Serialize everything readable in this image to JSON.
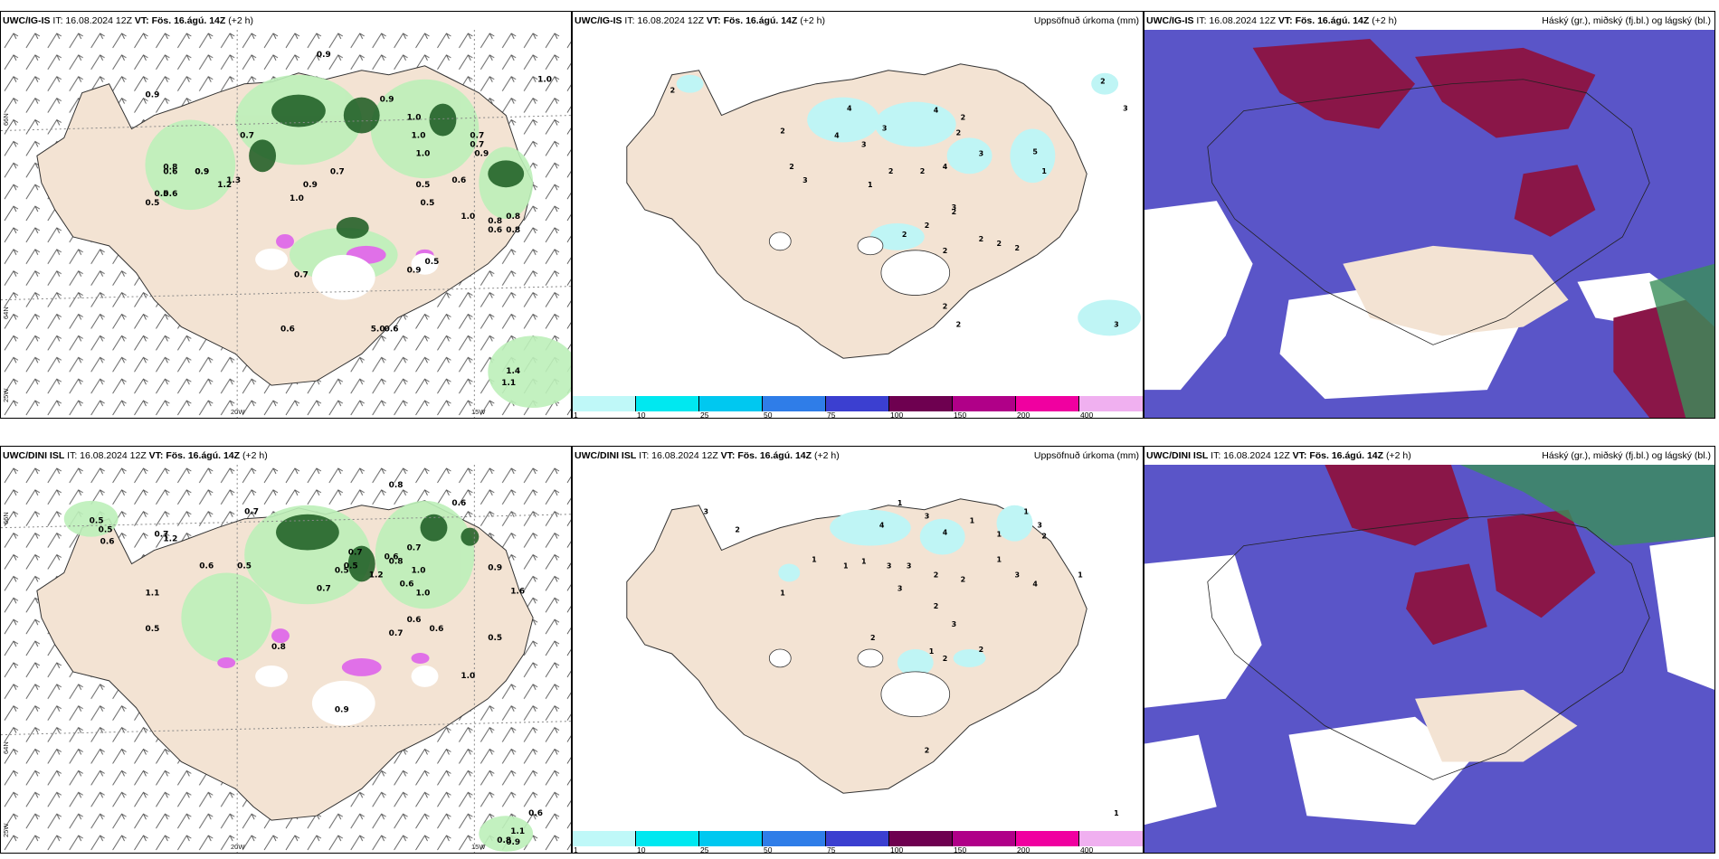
{
  "rows": [
    {
      "model": "UWC/IG-IS",
      "it": "IT: 16.08.2024 12Z",
      "vt_label": "VT:",
      "vt_value": "Fös. 16.ágú. 14Z",
      "lead": "(+2 h)",
      "labels_a": [
        "0.9",
        "1.0",
        "0.9",
        "0.9",
        "1.0",
        "0.7",
        "1.0",
        "1.3",
        "0.5",
        "0.7",
        "0.8",
        "1.0",
        "0.9",
        "0.6",
        "0.9",
        "1.2",
        "0.5",
        "1.0",
        "0.9",
        "0.7",
        "0.5",
        "0.6",
        "0.8",
        "0.5",
        "0.6",
        "1.0",
        "0.5",
        "0.9",
        "0.8",
        "0.8",
        "0.9",
        "0.7",
        "0.7",
        "0.6",
        "0.6",
        "5.0",
        "0.6",
        "1.1",
        "1.4"
      ],
      "labels_b": [
        "2",
        "2",
        "4",
        "3",
        "4",
        "2",
        "4",
        "3",
        "2",
        "4",
        "2",
        "3",
        "1",
        "2",
        "2",
        "3",
        "1",
        "5",
        "2",
        "2",
        "2",
        "2",
        "2",
        "2",
        "3",
        "2",
        "2",
        "2",
        "3",
        "2",
        "3"
      ]
    },
    {
      "model": "UWC/DINI ISL",
      "it": "IT: 16.08.2024 12Z",
      "vt_label": "VT:",
      "vt_value": "Fös. 16.ágú. 14Z",
      "lead": "(+2 h)",
      "labels_a": [
        "0.8",
        "0.6",
        "0.5",
        "0.5",
        "0.6",
        "0.7",
        "1.2",
        "0.7",
        "0.6",
        "0.5",
        "1.1",
        "0.7",
        "0.5",
        "0.6",
        "0.7",
        "0.8",
        "1.0",
        "1.2",
        "0.6",
        "0.9",
        "1.0",
        "0.5",
        "0.7",
        "1.6",
        "0.5",
        "0.6",
        "0.7",
        "0.6",
        "0.8",
        "0.5",
        "1.0",
        "0.9",
        "0.6",
        "1.1",
        "0.8",
        "0.9"
      ],
      "labels_b": [
        "3",
        "2",
        "1",
        "4",
        "3",
        "4",
        "1",
        "1",
        "1",
        "3",
        "2",
        "1",
        "1",
        "1",
        "3",
        "3",
        "2",
        "2",
        "1",
        "3",
        "4",
        "1",
        "1",
        "3",
        "2",
        "3",
        "2",
        "1",
        "2",
        "2",
        "2",
        "1"
      ]
    }
  ],
  "precip_title": "Uppsöfnuð úrkoma (mm)",
  "cloud_title": "Háský (gr.), miðský (fj.bl.) og lágský (bl.)",
  "colorbar": {
    "ticks": [
      "1",
      "10",
      "25",
      "50",
      "75",
      "100",
      "150",
      "200",
      "400"
    ],
    "colors": [
      "#bff8f8",
      "#00e8f0",
      "#00c8f0",
      "#2f7de8",
      "#3b3fd0",
      "#6e0050",
      "#b00088",
      "#f000a0",
      "#f0b0f0"
    ]
  },
  "grid_labels": {
    "lat_top": "66N",
    "lat_bot": "64N",
    "lon_left": "20W",
    "lon_right": "15W",
    "left_bottom": "25W"
  },
  "colors": {
    "land": "#f3e3d3",
    "light_green": "#bdf0b9",
    "dark_green": "#1a5a20",
    "magenta": "#e070e8",
    "precip": "#bff5f5",
    "cloud_blue": "#5a55c8",
    "cloud_red": "#8a1648",
    "cloud_white": "#ffffff"
  }
}
